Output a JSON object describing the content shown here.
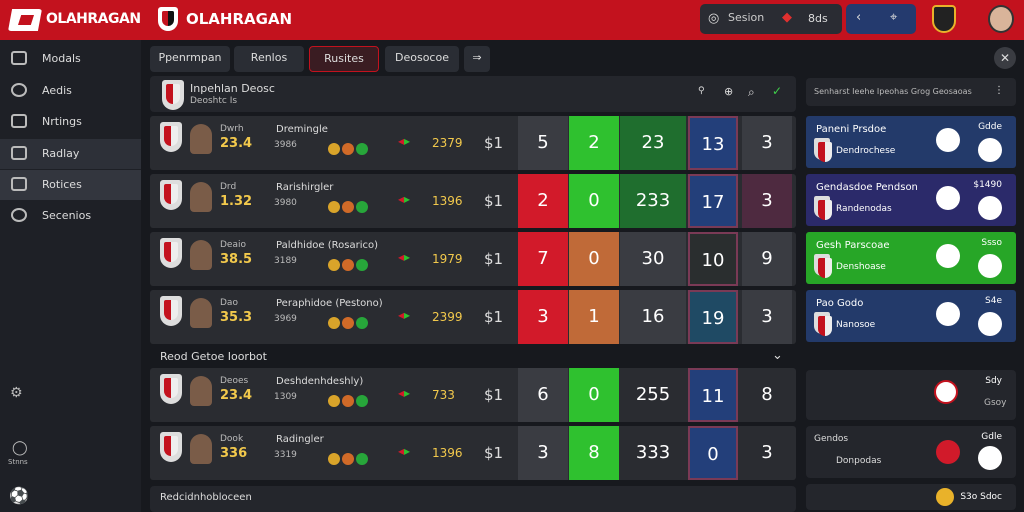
{
  "header": {
    "brand_left": "OLAHRAGAN",
    "brand_center": "OLAHRAGAN",
    "search_label": "Sesion",
    "score_badge": "8ds"
  },
  "sidebar": {
    "items": [
      {
        "label": "Modals"
      },
      {
        "label": "Aedis"
      },
      {
        "label": "Nrtings"
      },
      {
        "label": "Radlay"
      },
      {
        "label": "Rotices"
      },
      {
        "label": "Secenios"
      }
    ],
    "bottom_label": "Stnns"
  },
  "tabs": [
    "Ppenrmpan",
    "Renlos",
    "Rusites",
    "Deosocoe"
  ],
  "main": {
    "title": "Inpehlan Deosc",
    "subtitle": "Deoshtc Is",
    "rows": [
      {
        "team": "Dremingle",
        "odds": "23.4",
        "meta": "Dwrh",
        "market": "3986",
        "price": "2379",
        "line": "$1",
        "s1": "5",
        "s2": "2",
        "s3": "23",
        "s4": "13",
        "s5": "3",
        "c1": "#3a3c42",
        "c2": "#2fc12f",
        "c3": "#1f6e2e",
        "c4": "#233f7a",
        "c5": "#3a3c42"
      },
      {
        "team": "Rarishirgler",
        "odds": "1.32",
        "meta": "Drd",
        "market": "3980",
        "price": "1396",
        "line": "$1",
        "s1": "2",
        "s2": "0",
        "s3": "233",
        "s4": "17",
        "s5": "3",
        "c1": "#d21a2a",
        "c2": "#2fc12f",
        "c3": "#1f6e2e",
        "c4": "#233f7a",
        "c5": "#4e2a40"
      },
      {
        "team": "Paldhidoe (Rosarico)",
        "odds": "38.5",
        "meta": "Deaio",
        "market": "3189",
        "price": "1979",
        "line": "$1",
        "s1": "7",
        "s2": "0",
        "s3": "30",
        "s4": "10",
        "s5": "9",
        "c1": "#d21a2a",
        "c2": "#c06a38",
        "c3": "#3a3c42",
        "c4": "#2a2e2f",
        "c5": "#3a3c42"
      },
      {
        "team": "Peraphidoe (Pestono)",
        "odds": "35.3",
        "meta": "Dao",
        "market": "3969",
        "price": "2399",
        "line": "$1",
        "s1": "3",
        "s2": "1",
        "s3": "16",
        "s4": "19",
        "s5": "3",
        "c1": "#d21a2a",
        "c2": "#c06a38",
        "c3": "#3a3c42",
        "c4": "#1f4a64",
        "c5": "#3a3c42"
      }
    ],
    "section2_title": "Reod Getoe Ioorbot",
    "rows2": [
      {
        "team": "Deshdenhdeshly)",
        "odds": "23.4",
        "meta": "Deoes",
        "market": "1309",
        "price": "733",
        "line": "$1",
        "s1": "6",
        "s2": "0",
        "s3": "255",
        "s4": "11",
        "s5": "8",
        "c1": "#3a3c42",
        "c2": "#2fc12f",
        "c3": "#2a2c31",
        "c4": "#233f7a",
        "c5": "#2a2c31"
      },
      {
        "team": "Radingler",
        "odds": "336",
        "meta": "Dook",
        "market": "3319",
        "price": "1396",
        "line": "$1",
        "s1": "3",
        "s2": "8",
        "s3": "333",
        "s4": "0",
        "s5": "3",
        "c1": "#3a3c42",
        "c2": "#2fc12f",
        "c3": "#2a2c31",
        "c4": "#233f7a",
        "c5": "#2a2c31"
      }
    ],
    "footer_label": "Redcidnhobloceen"
  },
  "right_panel": {
    "header": "Senharst Ieehe Ipeohas Grog Geosaoas",
    "cards": [
      {
        "title": "Paneni Prsdoe",
        "team": "Dendrochese",
        "num": "Gdde",
        "bg": "#233a6a"
      },
      {
        "title": "Gendasdoe Pendson",
        "team": "Randenodas",
        "num": "$1490",
        "bg": "#2b2a6a"
      },
      {
        "title": "Gesh Parscoae",
        "team": "Denshoase",
        "num": "Ssso",
        "bg": "#27a627"
      },
      {
        "title": "Pao Godo",
        "team": "Nanosoe",
        "num": "S4e",
        "bg": "#233a6a"
      }
    ],
    "bottom_items": [
      {
        "title": "",
        "num": "Sdy",
        "extra": "Gsoy"
      },
      {
        "title": "Gendos",
        "team": "Donpodas",
        "num": "Gdle"
      },
      {
        "title": "",
        "num": "S3o Sdoc"
      }
    ]
  }
}
